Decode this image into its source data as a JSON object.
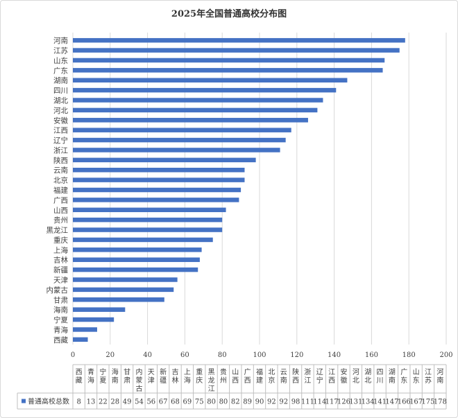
{
  "chart_data": {
    "type": "bar",
    "orientation": "horizontal",
    "title": "2025年全国普通高校分布图",
    "categories": [
      "西藏",
      "青海",
      "宁夏",
      "海南",
      "甘肃",
      "内蒙古",
      "天津",
      "新疆",
      "吉林",
      "上海",
      "重庆",
      "黑龙江",
      "贵州",
      "山西",
      "广西",
      "福建",
      "北京",
      "云南",
      "陕西",
      "浙江",
      "辽宁",
      "江西",
      "安徽",
      "河北",
      "湖北",
      "四川",
      "湖南",
      "广东",
      "山东",
      "江苏",
      "河南"
    ],
    "series": [
      {
        "name": "普通高校总数",
        "color": "#4472c4",
        "values": [
          8,
          13,
          22,
          28,
          49,
          54,
          56,
          67,
          68,
          69,
          75,
          80,
          80,
          82,
          89,
          90,
          92,
          92,
          98,
          111,
          114,
          117,
          126,
          131,
          134,
          141,
          147,
          166,
          167,
          175,
          178
        ]
      }
    ],
    "xlim": [
      0,
      200
    ],
    "xticks": [
      0,
      20,
      40,
      60,
      80,
      100,
      120,
      140,
      160,
      180,
      200
    ],
    "grid": true,
    "data_table": true
  }
}
